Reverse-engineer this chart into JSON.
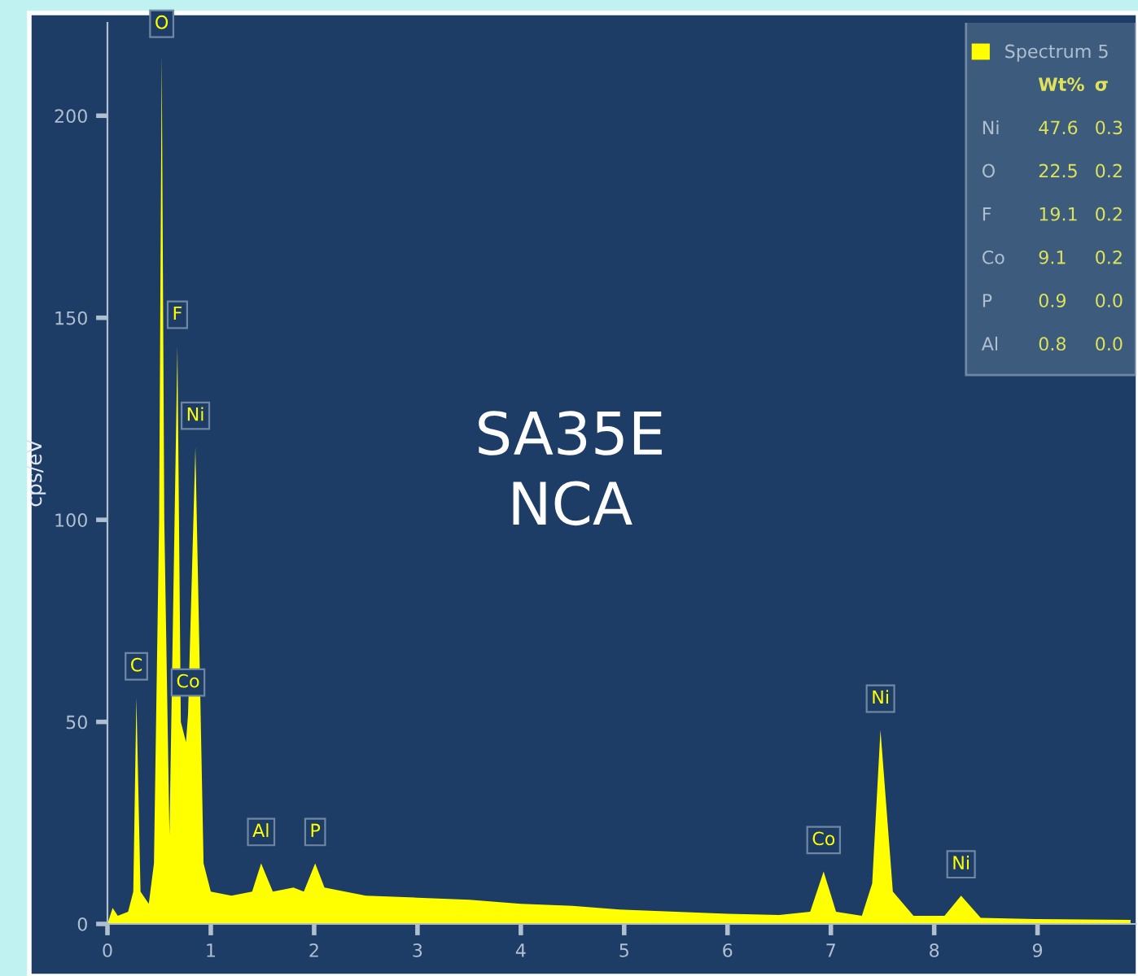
{
  "chart_data": {
    "type": "area",
    "ylabel": "cps/eV",
    "x": [
      0,
      0.05,
      0.1,
      0.2,
      0.25,
      0.28,
      0.32,
      0.4,
      0.45,
      0.5,
      0.525,
      0.55,
      0.6,
      0.677,
      0.71,
      0.76,
      0.78,
      0.851,
      0.93,
      1.0,
      1.2,
      1.4,
      1.487,
      1.6,
      1.8,
      1.9,
      2.01,
      2.1,
      2.5,
      3.0,
      3.5,
      4.0,
      4.5,
      5.0,
      5.5,
      6.0,
      6.5,
      6.8,
      6.93,
      7.05,
      7.3,
      7.4,
      7.48,
      7.6,
      7.8,
      8.1,
      8.26,
      8.45,
      9.0,
      9.9
    ],
    "series": [
      {
        "name": "Spectrum 5",
        "color": "#ffff00",
        "values": [
          0,
          4,
          2,
          3,
          8,
          56,
          8,
          5,
          15,
          100,
          215,
          100,
          22,
          143,
          50,
          45,
          52,
          118,
          15,
          8,
          7,
          8,
          15,
          8,
          9,
          8,
          15,
          9,
          7,
          6.5,
          6,
          5,
          4.5,
          3.5,
          3,
          2.5,
          2.2,
          3,
          13,
          3,
          2,
          10,
          48,
          8,
          2,
          2,
          7,
          1.5,
          1.2,
          1
        ]
      }
    ],
    "xlim": [
      0,
      9.95
    ],
    "ylim": [
      0,
      223
    ],
    "xticks": [
      0,
      1,
      2,
      3,
      4,
      5,
      6,
      7,
      8,
      9
    ],
    "yticks": [
      0,
      50,
      100,
      150,
      200
    ],
    "grid": false,
    "legend": "top right",
    "annotations": [
      "SA35E\nNCA",
      "Wt% σ",
      "Ni 47.6 0.3",
      "O 22.5 0.2",
      "F 19.1 0.2",
      "Co 9.1 0.2",
      "P 0.9 0.0",
      "Al 0.8 0.0",
      {
        "text": "C",
        "x": 0.28,
        "y": 56
      },
      {
        "text": "O",
        "x": 0.525,
        "y": 215
      },
      {
        "text": "F",
        "x": 0.677,
        "y": 143
      },
      {
        "text": "Ni",
        "x": 0.851,
        "y": 118
      },
      {
        "text": "Co",
        "x": 0.78,
        "y": 52
      },
      {
        "text": "Al",
        "x": 1.487,
        "y": 15
      },
      {
        "text": "P",
        "x": 2.01,
        "y": 15
      },
      {
        "text": "Co",
        "x": 6.93,
        "y": 13
      },
      {
        "text": "Ni",
        "x": 7.48,
        "y": 48
      },
      {
        "text": "Ni",
        "x": 8.26,
        "y": 7
      }
    ]
  }
}
